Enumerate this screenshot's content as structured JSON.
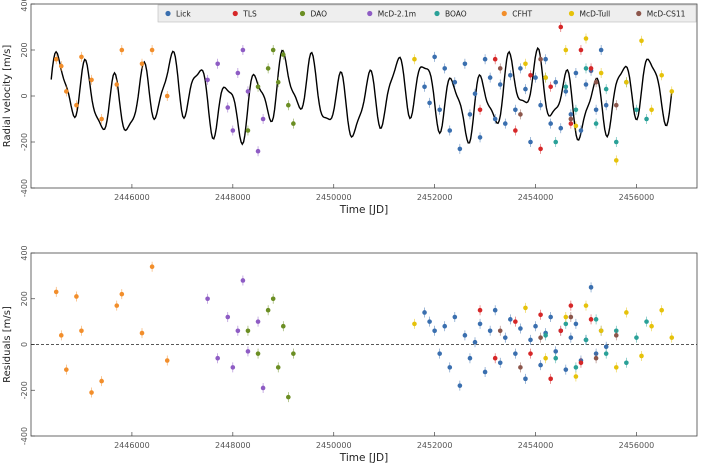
{
  "chart_data": [
    {
      "type": "scatter",
      "xlabel": "Time [JD]",
      "ylabel": "Radial velocity [m/s]",
      "xlim": [
        2444000,
        2457200
      ],
      "ylim": [
        -400,
        400
      ],
      "xticks": [
        "2446000",
        "2448000",
        "2450000",
        "2452000",
        "2454000",
        "2456000"
      ],
      "xtick_values": [
        2446000,
        2448000,
        2450000,
        2452000,
        2454000,
        2456000
      ],
      "yticks": [
        "400",
        "200",
        "0",
        "-200",
        "-400"
      ],
      "ytick_values": [
        400,
        200,
        0,
        -200,
        -400
      ],
      "grid": false,
      "legend_position": "top-right",
      "model_curve": {
        "color": "#000000"
      },
      "series": [
        {
          "name": "Lick",
          "color": "#3a6faf",
          "x": [
            2451800,
            2451900,
            2452000,
            2452100,
            2452200,
            2452300,
            2452400,
            2452500,
            2452600,
            2452700,
            2452800,
            2452900,
            2453000,
            2453100,
            2453200,
            2453300,
            2453400,
            2453500,
            2453600,
            2453700,
            2453800,
            2453900,
            2454000,
            2454100,
            2454200,
            2454300,
            2454400,
            2454500,
            2454600,
            2454700,
            2454800,
            2454900,
            2455000,
            2455100,
            2455200,
            2455300,
            2455400
          ],
          "y": [
            40,
            -30,
            170,
            -60,
            120,
            -150,
            60,
            -230,
            140,
            -80,
            10,
            -180,
            160,
            80,
            -100,
            50,
            -120,
            90,
            -60,
            120,
            30,
            -200,
            80,
            -40,
            160,
            -120,
            60,
            -140,
            20,
            -80,
            100,
            -150,
            50,
            110,
            -60,
            200,
            -40
          ]
        },
        {
          "name": "TLS",
          "color": "#d62728",
          "x": [
            2452900,
            2453200,
            2453600,
            2453900,
            2454100,
            2454300,
            2454500,
            2454700,
            2454900,
            2455100
          ],
          "y": [
            -60,
            160,
            -150,
            90,
            -230,
            40,
            300,
            -120,
            200,
            120
          ]
        },
        {
          "name": "DAO",
          "color": "#6b8e23",
          "x": [
            2448300,
            2448500,
            2448700,
            2448800,
            2448900,
            2449000,
            2449100,
            2449200
          ],
          "y": [
            -150,
            40,
            120,
            200,
            60,
            180,
            -40,
            -120
          ]
        },
        {
          "name": "McD-2.1m",
          "color": "#8e5cc4",
          "x": [
            2447500,
            2447700,
            2447900,
            2448000,
            2448100,
            2448200,
            2448300,
            2448500,
            2448600
          ],
          "y": [
            70,
            140,
            -50,
            -150,
            100,
            200,
            20,
            -240,
            -100
          ]
        },
        {
          "name": "BOAO",
          "color": "#2aa198",
          "x": [
            2454200,
            2454400,
            2454600,
            2454800,
            2455000,
            2455200,
            2455400,
            2455600,
            2455800,
            2456000,
            2456200
          ],
          "y": [
            80,
            -200,
            40,
            -60,
            120,
            -120,
            30,
            -200,
            60,
            -60,
            -100
          ]
        },
        {
          "name": "CFHT",
          "color": "#f28e2b",
          "x": [
            2444500,
            2444600,
            2444700,
            2444900,
            2445000,
            2445200,
            2445400,
            2445700,
            2445800,
            2446200,
            2446400,
            2446700
          ],
          "y": [
            160,
            130,
            20,
            -40,
            170,
            70,
            -100,
            50,
            200,
            140,
            200,
            0
          ]
        },
        {
          "name": "McD-Tull",
          "color": "#e6c20a",
          "x": [
            2451600,
            2453800,
            2454200,
            2454600,
            2454800,
            2455000,
            2455300,
            2455600,
            2455800,
            2456100,
            2456300,
            2456500,
            2456700
          ],
          "y": [
            160,
            140,
            80,
            200,
            -130,
            250,
            100,
            -280,
            60,
            240,
            -60,
            90,
            20
          ]
        },
        {
          "name": "McD-CS11",
          "color": "#8c564b",
          "x": [
            2453300,
            2453700,
            2454100,
            2454700,
            2455200,
            2455600
          ],
          "y": [
            120,
            -80,
            160,
            -100,
            60,
            -40
          ]
        }
      ]
    },
    {
      "type": "scatter",
      "xlabel": "Time [JD]",
      "ylabel": "Residuals [m/s]",
      "xlim": [
        2444000,
        2457200
      ],
      "ylim": [
        -400,
        400
      ],
      "xticks": [
        "2446000",
        "2448000",
        "2450000",
        "2452000",
        "2454000",
        "2456000"
      ],
      "xtick_values": [
        2446000,
        2448000,
        2450000,
        2452000,
        2454000,
        2456000
      ],
      "yticks": [
        "400",
        "200",
        "0",
        "-200",
        "-400"
      ],
      "ytick_values": [
        400,
        200,
        0,
        -200,
        -400
      ],
      "grid": false,
      "reference_line": 0,
      "series": [
        {
          "name": "Lick",
          "color": "#3a6faf",
          "x": [
            2451800,
            2451900,
            2452000,
            2452100,
            2452200,
            2452300,
            2452400,
            2452500,
            2452600,
            2452700,
            2452800,
            2452900,
            2453000,
            2453100,
            2453200,
            2453300,
            2453400,
            2453500,
            2453600,
            2453700,
            2453800,
            2453900,
            2454000,
            2454100,
            2454200,
            2454300,
            2454400,
            2454500,
            2454600,
            2454700,
            2454800,
            2454900,
            2455000,
            2455100,
            2455200,
            2455300,
            2455400
          ],
          "y": [
            140,
            100,
            60,
            -40,
            80,
            -100,
            120,
            -180,
            40,
            -60,
            10,
            90,
            -120,
            60,
            150,
            -80,
            30,
            110,
            -40,
            70,
            -150,
            20,
            80,
            -90,
            50,
            120,
            -30,
            60,
            -110,
            30,
            90,
            -70,
            20,
            250,
            -40,
            60,
            -10
          ]
        },
        {
          "name": "TLS",
          "color": "#d62728",
          "x": [
            2452900,
            2453200,
            2453600,
            2453900,
            2454100,
            2454300,
            2454500,
            2454700,
            2454900,
            2455100
          ],
          "y": [
            150,
            -60,
            100,
            -40,
            130,
            -150,
            60,
            170,
            -80,
            110
          ]
        },
        {
          "name": "DAO",
          "color": "#6b8e23",
          "x": [
            2448300,
            2448500,
            2448700,
            2448800,
            2448900,
            2449000,
            2449100,
            2449200
          ],
          "y": [
            60,
            -40,
            150,
            200,
            -100,
            80,
            -230,
            -40
          ]
        },
        {
          "name": "McD-2.1m",
          "color": "#8e5cc4",
          "x": [
            2447500,
            2447700,
            2447900,
            2448000,
            2448100,
            2448200,
            2448300,
            2448500,
            2448600
          ],
          "y": [
            200,
            -60,
            120,
            -100,
            60,
            280,
            -30,
            100,
            -190
          ]
        },
        {
          "name": "BOAO",
          "color": "#2aa198",
          "x": [
            2454200,
            2454400,
            2454600,
            2454800,
            2455000,
            2455200,
            2455400,
            2455600,
            2455800,
            2456000,
            2456200
          ],
          "y": [
            40,
            -60,
            90,
            -100,
            20,
            110,
            -40,
            60,
            -80,
            30,
            100
          ]
        },
        {
          "name": "CFHT",
          "color": "#f28e2b",
          "x": [
            2444500,
            2444600,
            2444700,
            2444900,
            2445000,
            2445200,
            2445400,
            2445700,
            2445800,
            2446200,
            2446400,
            2446700
          ],
          "y": [
            230,
            40,
            -110,
            210,
            60,
            -210,
            -160,
            170,
            220,
            50,
            340,
            -70
          ]
        },
        {
          "name": "McD-Tull",
          "color": "#e6c20a",
          "x": [
            2451600,
            2453800,
            2454200,
            2454600,
            2454800,
            2455000,
            2455300,
            2455600,
            2455800,
            2456100,
            2456300,
            2456500,
            2456700
          ],
          "y": [
            90,
            160,
            -60,
            120,
            -140,
            170,
            60,
            -100,
            140,
            -50,
            80,
            150,
            30
          ]
        },
        {
          "name": "McD-CS11",
          "color": "#8c564b",
          "x": [
            2453300,
            2453700,
            2454100,
            2454700,
            2455200,
            2455600
          ],
          "y": [
            60,
            -100,
            30,
            120,
            -60,
            40
          ]
        }
      ]
    }
  ]
}
